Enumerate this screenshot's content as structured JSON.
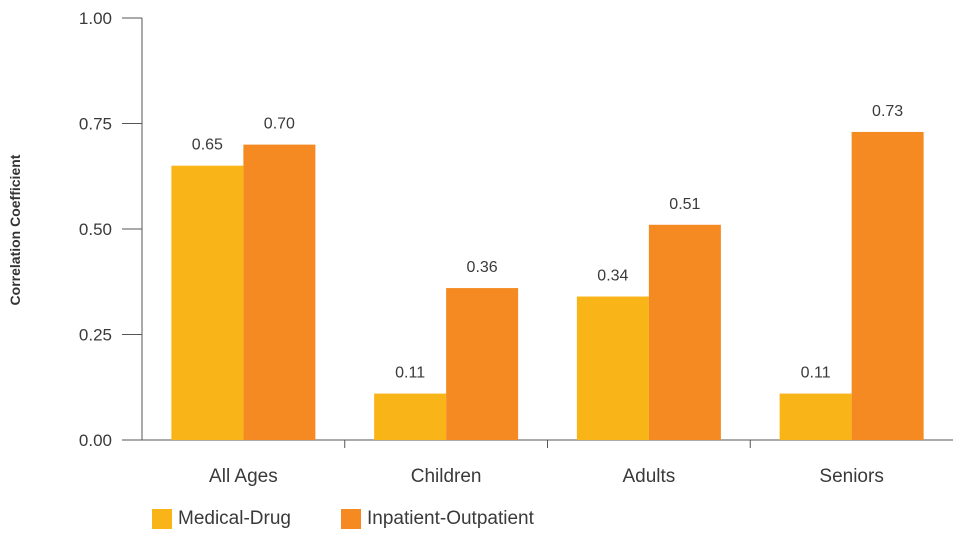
{
  "chart_data": {
    "type": "bar",
    "categories": [
      "All Ages",
      "Children",
      "Adults",
      "Seniors"
    ],
    "series": [
      {
        "name": "Medical-Drug",
        "values": [
          0.65,
          0.11,
          0.34,
          0.11
        ],
        "color": "#F9B418"
      },
      {
        "name": "Inpatient-Outpatient",
        "values": [
          0.7,
          0.36,
          0.51,
          0.73
        ],
        "color": "#F48A21"
      }
    ],
    "value_labels": [
      [
        "0.65",
        "0.11",
        "0.34",
        "0.11"
      ],
      [
        "0.70",
        "0.36",
        "0.51",
        "0.73"
      ]
    ],
    "ylabel": "Correlation Coefficient",
    "xlabel": "",
    "ylim": [
      0,
      1
    ],
    "yticks": [
      "0.00",
      "0.25",
      "0.50",
      "0.75",
      "1.00"
    ],
    "grid": false,
    "legend_position": "bottom-left"
  }
}
